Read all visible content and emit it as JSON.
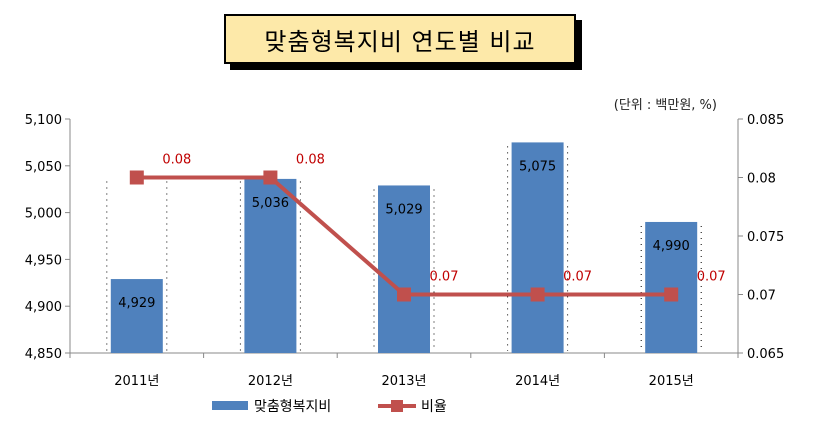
{
  "chart_data": {
    "type": "bar+line",
    "title": "맞춤형복지비 연도별 비교",
    "unit_note": "(단위 : 백만원, %)",
    "categories": [
      "2011년",
      "2012년",
      "2013년",
      "2014년",
      "2015년"
    ],
    "series": [
      {
        "name": "맞춤형복지비",
        "type": "bar",
        "axis": "left",
        "color": "#4f81bd",
        "values": [
          4929,
          5036,
          5029,
          5075,
          4990
        ],
        "labels": [
          "4,929",
          "5,036",
          "5,029",
          "5,075",
          "4,990"
        ]
      },
      {
        "name": "비율",
        "type": "line",
        "axis": "right",
        "color": "#c0504d",
        "values": [
          0.08,
          0.08,
          0.07,
          0.07,
          0.07
        ],
        "labels": [
          "0.08",
          "0.08",
          "0.07",
          "0.07",
          "0.07"
        ]
      }
    ],
    "y_left": {
      "min": 4850,
      "max": 5100,
      "ticks": [
        4850,
        4900,
        4950,
        5000,
        5050,
        5100
      ],
      "tick_labels": [
        "4,850",
        "4,900",
        "4,950",
        "5,000",
        "5,050",
        "5,100"
      ]
    },
    "y_right": {
      "min": 0.065,
      "max": 0.085,
      "ticks": [
        0.065,
        0.07,
        0.075,
        0.08,
        0.085
      ],
      "tick_labels": [
        "0.065",
        "0.07",
        "0.075",
        "0.08",
        "0.085"
      ]
    },
    "grid": false,
    "legend_position": "bottom"
  }
}
